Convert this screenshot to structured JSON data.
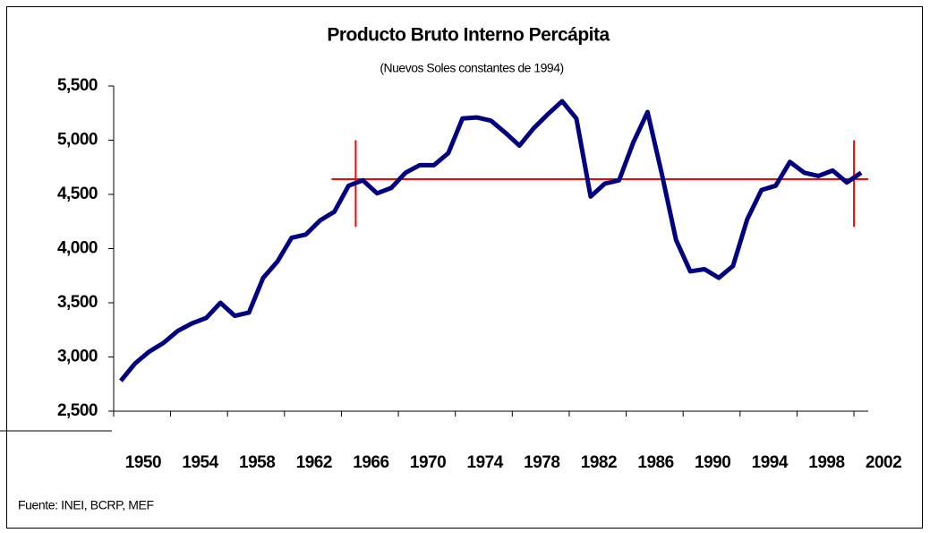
{
  "chart_data": {
    "type": "line",
    "title": "Producto Bruto Interno Percápita",
    "subtitle": "(Nuevos Soles constantes de 1994)",
    "source": "Fuente: INEI, BCRP, MEF",
    "x": [
      1950,
      1951,
      1952,
      1953,
      1954,
      1955,
      1956,
      1957,
      1958,
      1959,
      1960,
      1961,
      1962,
      1963,
      1964,
      1965,
      1966,
      1967,
      1968,
      1969,
      1970,
      1971,
      1972,
      1973,
      1974,
      1975,
      1976,
      1977,
      1978,
      1979,
      1980,
      1981,
      1982,
      1983,
      1984,
      1985,
      1986,
      1987,
      1988,
      1989,
      1990,
      1991,
      1992,
      1993,
      1994,
      1995,
      1996,
      1997,
      1998,
      1999,
      2000,
      2001,
      2002
    ],
    "series": [
      {
        "color": "#000080",
        "values": [
          2780,
          2940,
          3050,
          3130,
          3240,
          3310,
          3360,
          3500,
          3380,
          3410,
          3730,
          3880,
          4100,
          4130,
          4260,
          4340,
          4580,
          4630,
          4510,
          4560,
          4700,
          4770,
          4770,
          4880,
          5200,
          5210,
          5180,
          5070,
          4950,
          5110,
          5240,
          5360,
          5200,
          4480,
          4600,
          4630,
          4980,
          5260,
          4690,
          4080,
          3790,
          3810,
          3730,
          3840,
          4270,
          4540,
          4580,
          4800,
          4700,
          4670,
          4720,
          4610,
          4700
        ]
      }
    ],
    "reference_line": {
      "color": "#ff0000",
      "value": 4640,
      "x": [
        1964.8,
        2002.5
      ]
    },
    "reference_markers": {
      "color": "#ff0000",
      "x": [
        1966.5,
        2001.5
      ],
      "y": [
        4200,
        5000
      ]
    },
    "xlim": [
      1949.5,
      2002.5
    ],
    "xticks": [
      1950,
      1954,
      1958,
      1962,
      1966,
      1970,
      1974,
      1978,
      1982,
      1986,
      1990,
      1994,
      1998,
      2002
    ],
    "ylim": [
      2500,
      5500
    ],
    "yticks": [
      {
        "value": 2500,
        "label": "2,500"
      },
      {
        "value": 3000,
        "label": "3,000"
      },
      {
        "value": 3500,
        "label": "3,500"
      },
      {
        "value": 4000,
        "label": "4,000"
      },
      {
        "value": 4500,
        "label": "4,500"
      },
      {
        "value": 5000,
        "label": "5,000"
      },
      {
        "value": 5500,
        "label": "5,500"
      }
    ]
  }
}
